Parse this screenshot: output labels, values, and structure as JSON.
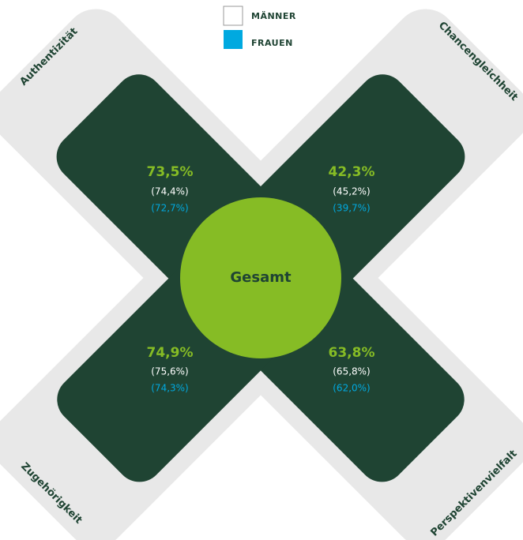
{
  "legend": [
    {
      "label": "MÄNNER",
      "color": "#ffffff"
    },
    {
      "label": "FRAUEN",
      "color": "#00a9e0"
    }
  ],
  "center": {
    "label": "Gesamt"
  },
  "quadrants": [
    {
      "name": "Authentizität",
      "total": "73,5%",
      "men": "(74,4%)",
      "women": "(72,7%)"
    },
    {
      "name": "Chancengleichheit",
      "total": "42,3%",
      "men": "(45,2%)",
      "women": "(39,7%)"
    },
    {
      "name": "Zugehörigkeit",
      "total": "74,9%",
      "men": "(75,6%)",
      "women": "(74,3%)"
    },
    {
      "name": "Perspektivenvielfalt",
      "total": "63,8%",
      "men": "(65,8%)",
      "women": "(62,0%)"
    }
  ]
}
